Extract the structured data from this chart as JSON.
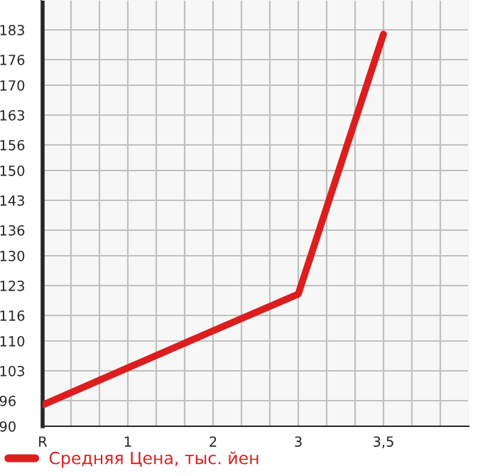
{
  "chart_data": {
    "type": "line",
    "categories": [
      "R",
      "1",
      "2",
      "3",
      "3,5",
      null
    ],
    "series": [
      {
        "name": "Средняя Цена, тыс. йен",
        "color": "#dc1e1e",
        "values": [
          95,
          103.7,
          112.4,
          121,
          182,
          null
        ]
      }
    ],
    "ylim": [
      90,
      190
    ],
    "yticks": [
      90,
      96,
      103,
      110,
      116,
      123,
      130,
      136,
      143,
      150,
      156,
      163,
      170,
      176,
      183
    ],
    "grid": true,
    "legend": "bottom",
    "marker": "none",
    "line_style": "solid"
  }
}
